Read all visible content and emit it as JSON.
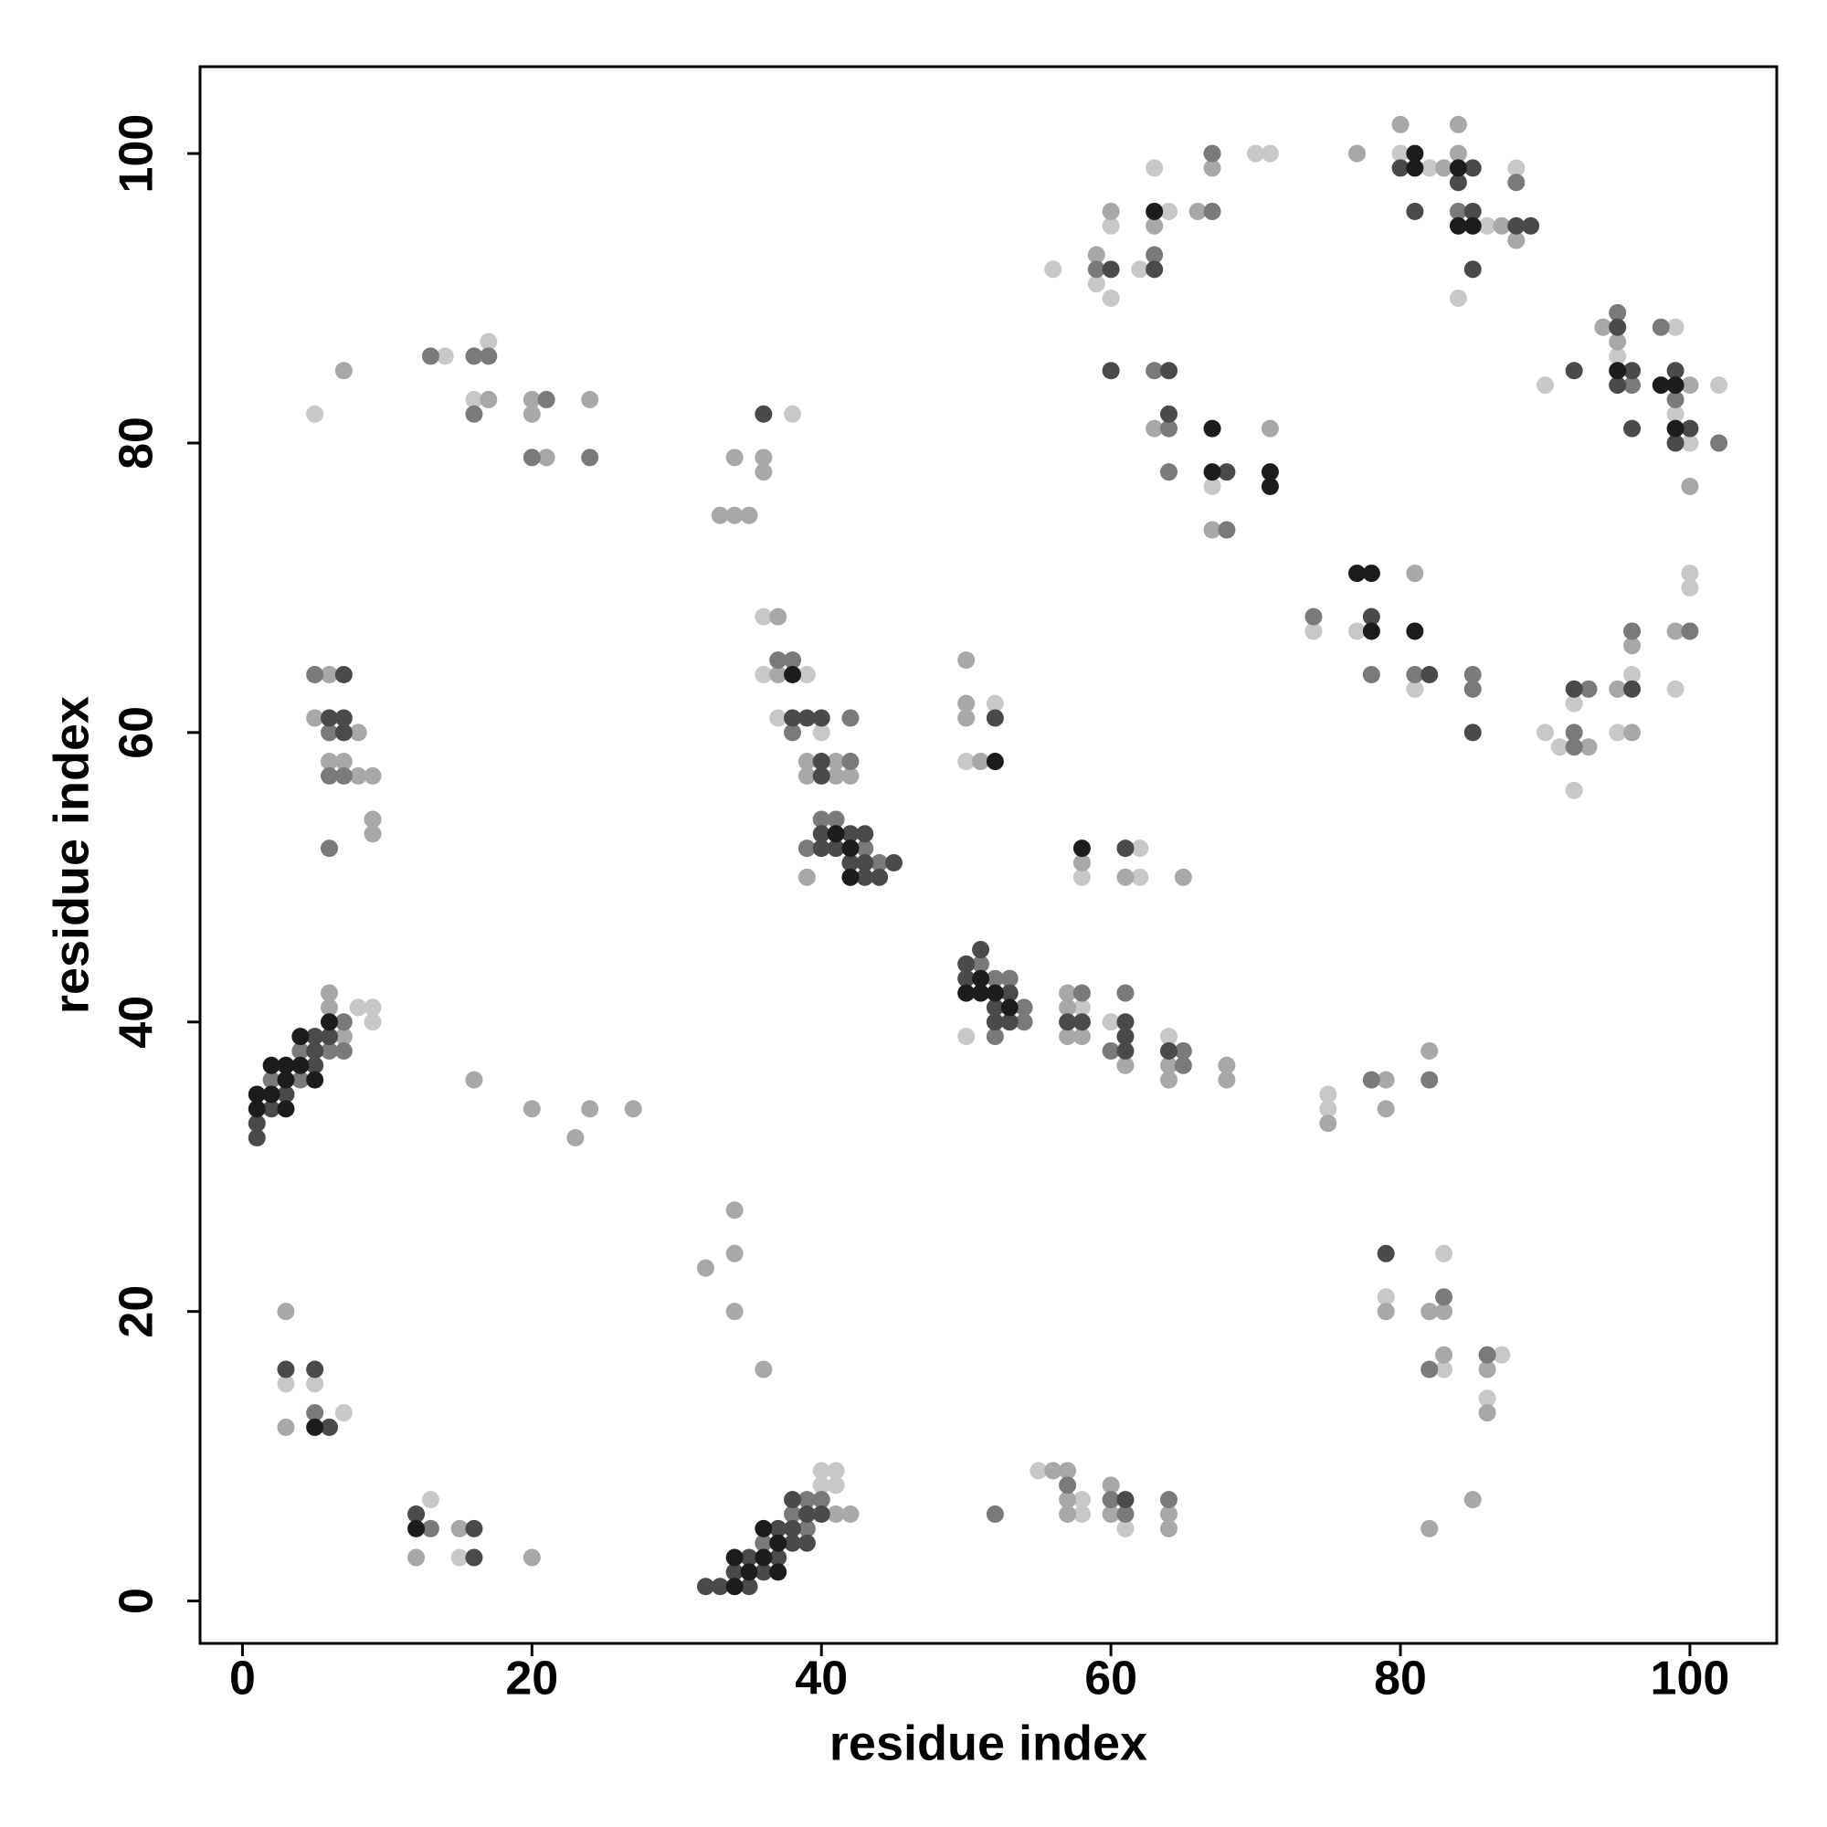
{
  "chart_data": {
    "type": "scatter",
    "x_label": "residue index",
    "y_label": "residue index",
    "xlim": [
      -2.93,
      106
    ],
    "ylim": [
      -2.93,
      106
    ],
    "xticks": [
      0,
      20,
      40,
      60,
      80,
      100
    ],
    "yticks": [
      0,
      20,
      40,
      60,
      80,
      100
    ],
    "series": [
      {
        "color": "#c8c8c8",
        "x": [
          8,
          9,
          9,
          5,
          14,
          17,
          16,
          3,
          5,
          7,
          13,
          15,
          40,
          41,
          40,
          41,
          38,
          36,
          36,
          39,
          37,
          40,
          50,
          58,
          60,
          64,
          75,
          75,
          52,
          50,
          58,
          62,
          62,
          55,
          58,
          58,
          61,
          79,
          83,
          83,
          87,
          86,
          56,
          59,
          60,
          60,
          62,
          64,
          63,
          70,
          71,
          67,
          80,
          82,
          86,
          88,
          84,
          74,
          77,
          81,
          90,
          91,
          92,
          92,
          95,
          96,
          100,
          100,
          99,
          90,
          95,
          99,
          99,
          100,
          102
        ],
        "values": [
          41,
          40,
          41,
          82,
          86,
          87,
          83,
          15,
          15,
          13,
          7,
          3,
          8,
          8,
          9,
          9,
          82,
          68,
          64,
          64,
          61,
          60,
          39,
          41,
          40,
          39,
          35,
          34,
          62,
          58,
          50,
          52,
          50,
          9,
          7,
          6,
          5,
          21,
          24,
          16,
          17,
          14,
          92,
          91,
          90,
          95,
          92,
          96,
          99,
          100,
          100,
          77,
          100,
          99,
          95,
          99,
          90,
          67,
          67,
          63,
          60,
          59,
          62,
          56,
          60,
          64,
          70,
          71,
          63,
          84,
          86,
          88,
          82,
          80,
          84
        ]
      },
      {
        "color": "#a8a8a8",
        "x": [
          6,
          6,
          7,
          6,
          5,
          8,
          6,
          7,
          8,
          9,
          9,
          9,
          7,
          17,
          20,
          20,
          21,
          24,
          16,
          20,
          23,
          24,
          27,
          3,
          3,
          12,
          15,
          20,
          41,
          42,
          32,
          34,
          34,
          34,
          36,
          34,
          36,
          36,
          33,
          34,
          35,
          37,
          37,
          39,
          41,
          39,
          41,
          42,
          39,
          57,
          57,
          57,
          58,
          61,
          64,
          64,
          68,
          68,
          75,
          79,
          79,
          82,
          50,
          50,
          50,
          51,
          58,
          61,
          65,
          56,
          57,
          57,
          57,
          60,
          60,
          64,
          64,
          79,
          82,
          83,
          83,
          86,
          86,
          85,
          82,
          59,
          63,
          60,
          66,
          67,
          63,
          71,
          67,
          77,
          80,
          83,
          84,
          84,
          87,
          88,
          81,
          93,
          95,
          96,
          96,
          99,
          94,
          95,
          100,
          100
        ],
        "values": [
          41,
          42,
          39,
          64,
          61,
          60,
          58,
          58,
          57,
          57,
          54,
          53,
          85,
          83,
          83,
          82,
          79,
          83,
          36,
          34,
          32,
          34,
          34,
          20,
          12,
          3,
          5,
          3,
          6,
          6,
          23,
          27,
          24,
          20,
          16,
          79,
          79,
          78,
          75,
          75,
          75,
          68,
          64,
          58,
          58,
          57,
          57,
          57,
          50,
          42,
          41,
          39,
          39,
          37,
          37,
          36,
          37,
          36,
          33,
          36,
          34,
          38,
          65,
          62,
          61,
          58,
          51,
          50,
          50,
          9,
          9,
          7,
          6,
          8,
          6,
          6,
          5,
          20,
          20,
          20,
          17,
          16,
          13,
          7,
          5,
          93,
          95,
          96,
          96,
          99,
          81,
          81,
          74,
          100,
          102,
          99,
          102,
          100,
          95,
          94,
          71,
          59,
          63,
          60,
          66,
          67,
          88,
          87,
          84,
          77
        ]
      },
      {
        "color": "#7a7a7a",
        "x": [
          2,
          4,
          4,
          6,
          7,
          7,
          5,
          6,
          6,
          7,
          6,
          13,
          16,
          17,
          16,
          21,
          20,
          24,
          5,
          13,
          36,
          38,
          39,
          39,
          40,
          37,
          38,
          42,
          38,
          42,
          39,
          40,
          41,
          43,
          44,
          51,
          52,
          53,
          54,
          54,
          52,
          58,
          61,
          60,
          65,
          65,
          78,
          82,
          52,
          57,
          60,
          61,
          64,
          83,
          82,
          86,
          59,
          63,
          67,
          67,
          63,
          64,
          64,
          68,
          84,
          88,
          74,
          78,
          81,
          85,
          85,
          92,
          92,
          93,
          96,
          100,
          95,
          96,
          98,
          99,
          102
        ],
        "values": [
          36,
          36,
          38,
          38,
          38,
          40,
          64,
          60,
          57,
          57,
          52,
          86,
          86,
          86,
          82,
          83,
          79,
          79,
          13,
          5,
          4,
          6,
          5,
          7,
          7,
          65,
          65,
          61,
          60,
          58,
          52,
          54,
          54,
          52,
          51,
          44,
          43,
          43,
          41,
          40,
          39,
          42,
          42,
          38,
          38,
          37,
          36,
          36,
          6,
          8,
          7,
          6,
          7,
          21,
          16,
          17,
          92,
          93,
          96,
          100,
          85,
          81,
          78,
          74,
          96,
          98,
          68,
          64,
          64,
          64,
          63,
          60,
          59,
          63,
          67,
          67,
          89,
          84,
          88,
          83,
          80
        ]
      },
      {
        "color": "#4a4a4a",
        "x": [
          1,
          1,
          2,
          3,
          5,
          5,
          5,
          6,
          6,
          7,
          7,
          7,
          3,
          5,
          6,
          12,
          16,
          16,
          36,
          32,
          33,
          35,
          34,
          35,
          36,
          37,
          37,
          38,
          39,
          38,
          38,
          39,
          40,
          38,
          39,
          40,
          40,
          40,
          40,
          40,
          41,
          42,
          43,
          42,
          43,
          43,
          44,
          45,
          50,
          51,
          50,
          53,
          52,
          52,
          53,
          57,
          58,
          61,
          61,
          61,
          64,
          79,
          52,
          61,
          61,
          60,
          63,
          60,
          64,
          64,
          68,
          80,
          85,
          84,
          85,
          81,
          88,
          89,
          85,
          78,
          82,
          85,
          92,
          96,
          92,
          95,
          96,
          95,
          96,
          99,
          100,
          99
        ],
        "values": [
          32,
          33,
          34,
          35,
          37,
          38,
          39,
          39,
          61,
          61,
          60,
          64,
          16,
          16,
          12,
          6,
          5,
          3,
          82,
          1,
          1,
          1,
          2,
          3,
          2,
          3,
          5,
          4,
          4,
          5,
          7,
          6,
          6,
          61,
          61,
          61,
          58,
          57,
          52,
          53,
          52,
          53,
          53,
          51,
          51,
          50,
          50,
          51,
          44,
          45,
          43,
          42,
          41,
          40,
          40,
          40,
          40,
          40,
          39,
          38,
          38,
          24,
          61,
          52,
          7,
          92,
          92,
          85,
          85,
          82,
          78,
          99,
          99,
          98,
          96,
          96,
          95,
          95,
          92,
          68,
          64,
          60,
          63,
          63,
          85,
          88,
          85,
          84,
          81,
          85,
          81,
          80
        ]
      },
      {
        "color": "#1c1c1c",
        "x": [
          1,
          1,
          2,
          2,
          3,
          3,
          3,
          4,
          4,
          5,
          6,
          5,
          12,
          34,
          35,
          34,
          37,
          36,
          37,
          36,
          38,
          41,
          42,
          42,
          51,
          50,
          51,
          52,
          53,
          52,
          58,
          63,
          67,
          67,
          71,
          71,
          81,
          81,
          84,
          84,
          85,
          77,
          78,
          78,
          81,
          95,
          98,
          99,
          99
        ],
        "values": [
          34,
          35,
          35,
          37,
          34,
          36,
          37,
          37,
          39,
          36,
          40,
          12,
          5,
          1,
          2,
          3,
          2,
          3,
          4,
          5,
          64,
          53,
          52,
          50,
          43,
          42,
          42,
          42,
          41,
          58,
          52,
          96,
          81,
          78,
          78,
          77,
          100,
          99,
          99,
          95,
          95,
          71,
          71,
          67,
          67,
          85,
          84,
          84,
          81
        ]
      }
    ]
  }
}
